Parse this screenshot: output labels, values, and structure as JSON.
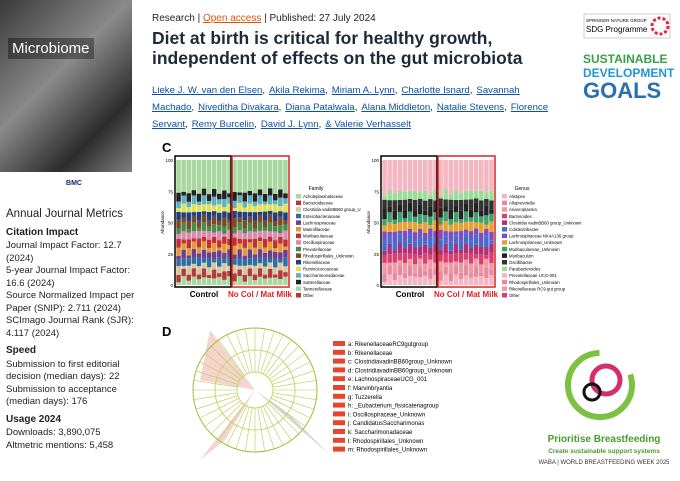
{
  "sidebar": {
    "cover_title": "Microbiome",
    "cover_publisher": "BMC",
    "metrics_title": "Annual Journal Metrics",
    "sections": [
      {
        "heading": "Citation Impact",
        "items": [
          "Journal Impact Factor: 12.7 (2024)",
          "5-year Journal Impact Factor: 16.6 (2024)",
          "Source Normalized Impact per Paper (SNIP): 2.711 (2024)",
          "SCImago Journal Rank (SJR): 4.117 (2024)"
        ]
      },
      {
        "heading": "Speed",
        "items": [
          "Submission to first editorial decision (median days): 22",
          "Submission to acceptance (median days): 176"
        ]
      },
      {
        "heading": "Usage 2024",
        "items": [
          "Downloads: 3,890,075",
          "Altmetric mentions: 5,458"
        ]
      }
    ]
  },
  "header": {
    "type": "Research",
    "access": "Open access",
    "published": "Published: 27 July 2024",
    "title": "Diet at birth is critical for healthy growth, independent of effects on the gut microbiota",
    "authors": [
      "Lieke J. W. van den Elsen",
      "Akila Rekima",
      "Miriam A. Lynn",
      "Charlotte Isnard",
      "Savannah Machado",
      "Niveditha Divakara",
      "Diana Patalwala",
      "Alana Middleton",
      "Natalie Stevens",
      "Florence Servant",
      "Remy Burcelin",
      "David J. Lynn",
      "& Valerie Verhasselt"
    ]
  },
  "sdg": {
    "publisher": "SPRINGER NATURE GROUP",
    "programme": "SDG Programme",
    "goals": [
      "SUSTAINABLE",
      "DEVELOPMENT",
      "GOALS"
    ]
  },
  "figure": {
    "panel_c": "C",
    "panel_d": "D",
    "y_label": "Abundance",
    "yticks": [
      "100",
      "75",
      "50",
      "25",
      "0"
    ],
    "groups": [
      "Control",
      "No Col / Mat Milk"
    ],
    "family_title": "Family",
    "family": [
      "Acholeplasmataceae",
      "Bacteroidaceae",
      "Clostridia vadinBB60 group_U",
      "Enterobacteriaceae",
      "Lachnospiraceae",
      "Marinifilaceae",
      "Muribaculaceae",
      "Oscillospiraceae",
      "Prevotellaceae",
      "Rhodospirillales_Unknown",
      "Rikenellaceae",
      "Ruminococcaceae",
      "Saccharimonadaceae",
      "Sutterellaceae",
      "Tannerellaceae",
      "Other"
    ],
    "genus_title": "Genus",
    "genus": [
      "Alistipes",
      "Alloprevotella",
      "Anaeroplasma",
      "Bacteroides",
      "Clostridia vadinBB60 group_Unknown",
      "Colidextribacter",
      "Lachnospiraceae NK4A136 group",
      "Lachnospiraceae_Unknown",
      "Muribaculaceae_Unknown",
      "Muribaculum",
      "Oscillibacter",
      "Parabacteroides",
      "Prevotellaceae UCG-001",
      "Rhodospirillales_Unknown",
      "Rikenellaceae RC9 gut group",
      "Other"
    ],
    "clades": [
      "a: RikenellaceaeRC9gutgroup",
      "b: Rikenellaceae",
      "c: ClostridiavadinBB60group_Unknown",
      "d: ClostridiavadinBB60group_Unknown",
      "e: LachnospiraceaeUCG_001",
      "f: Marvinbryantia",
      "g: Tuzzerella",
      "h: _Eubacterium_fissicatenagroup",
      "i: Oscillospiraceae_Unknown",
      "j: CandidatusSaccharimonas",
      "k: Saccharimonadaceae",
      "l: Rhodospirillales_Unknown",
      "m: Rhodospirillales_Unknown"
    ]
  },
  "banner": {
    "title": "Prioritise Breastfeeding",
    "subtitle": "Create sustainable support systems",
    "footer": "WABA | WORLD BREASTFEEDING WEEK 2025"
  }
}
